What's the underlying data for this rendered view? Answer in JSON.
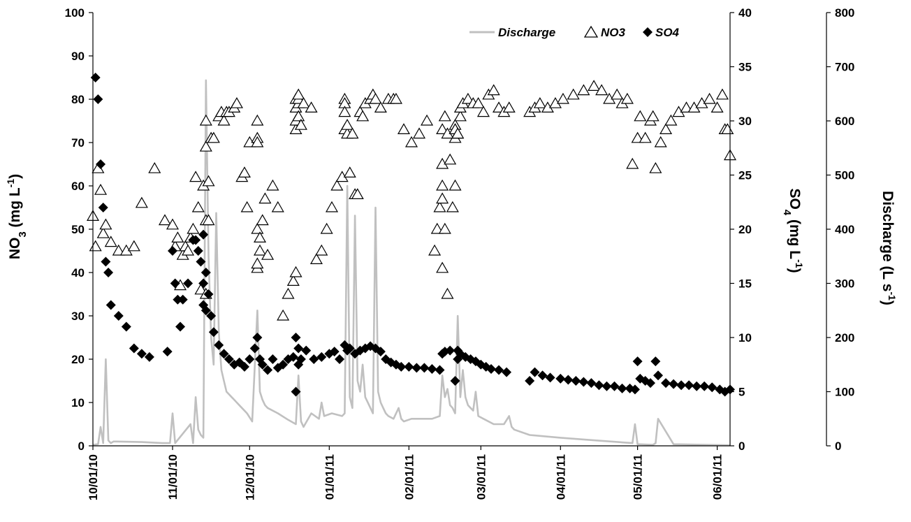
{
  "chart_data": {
    "type": "scatter",
    "title": "",
    "xlabel": "",
    "x_ticks": [
      "10/01/10",
      "11/01/10",
      "12/01/10",
      "01/01/11",
      "02/01/11",
      "03/01/11",
      "04/01/11",
      "05/01/11",
      "06/01/11"
    ],
    "xlim": [
      "2010-10-01",
      "2011-06-06"
    ],
    "y_left": {
      "label_main": "NO",
      "label_sub": "3",
      "label_unit": " (mg L",
      "label_sup": "-1",
      "label_end": ")",
      "ylim": [
        0,
        100
      ],
      "ticks": [
        "0",
        "10",
        "20",
        "30",
        "40",
        "50",
        "60",
        "70",
        "80",
        "90",
        "100"
      ]
    },
    "y_right1": {
      "label_main": "SO",
      "label_sub": "4",
      "label_unit": " (mg L",
      "label_sup": "-1",
      "label_end": ")",
      "ylim": [
        0,
        40
      ],
      "ticks": [
        "0",
        "5",
        "10",
        "15",
        "20",
        "25",
        "30",
        "35",
        "40"
      ]
    },
    "y_right2": {
      "label_main": "Discharge (L s",
      "label_sup": "-1",
      "label_end": ")",
      "ylim": [
        0,
        800
      ],
      "ticks": [
        "0",
        "100",
        "200",
        "300",
        "400",
        "500",
        "600",
        "700",
        "800"
      ]
    },
    "legend": {
      "position": "top-right",
      "entries": [
        "Discharge",
        "NO3",
        "SO4"
      ]
    },
    "colors": {
      "discharge": "#c0c0c0",
      "no3_edge": "#000000",
      "no3_fill": "#ffffff",
      "so4": "#000000"
    },
    "series": [
      {
        "name": "Discharge",
        "kind": "line",
        "axis": "right2",
        "x": [
          "2010-10-01",
          "2010-10-03",
          "2010-10-04",
          "2010-10-05",
          "2010-10-06",
          "2010-10-07",
          "2010-10-08",
          "2010-10-09",
          "2010-10-10",
          "2010-10-20",
          "2010-10-28",
          "2010-10-31",
          "2010-11-01",
          "2010-11-02",
          "2010-11-08",
          "2010-11-09",
          "2010-11-10",
          "2010-11-11",
          "2010-11-12",
          "2010-11-13",
          "2010-11-14",
          "2010-11-15",
          "2010-11-16",
          "2010-11-17",
          "2010-11-18",
          "2010-11-19",
          "2010-11-20",
          "2010-11-21",
          "2010-11-22",
          "2010-11-23",
          "2010-11-24",
          "2010-11-25",
          "2010-11-26",
          "2010-11-28",
          "2010-11-30",
          "2010-12-02",
          "2010-12-04",
          "2010-12-05",
          "2010-12-06",
          "2010-12-07",
          "2010-12-08",
          "2010-12-12",
          "2010-12-16",
          "2010-12-19",
          "2010-12-20",
          "2010-12-21",
          "2010-12-22",
          "2010-12-25",
          "2010-12-28",
          "2010-12-29",
          "2010-12-30",
          "2011-01-02",
          "2011-01-06",
          "2011-01-07",
          "2011-01-08",
          "2011-01-09",
          "2011-01-10",
          "2011-01-11",
          "2011-01-12",
          "2011-01-13",
          "2011-01-14",
          "2011-01-15",
          "2011-01-16",
          "2011-01-17",
          "2011-01-18",
          "2011-01-19",
          "2011-01-20",
          "2011-01-21",
          "2011-01-22",
          "2011-01-23",
          "2011-01-24",
          "2011-01-26",
          "2011-01-28",
          "2011-01-29",
          "2011-01-30",
          "2011-02-02",
          "2011-02-06",
          "2011-02-10",
          "2011-02-13",
          "2011-02-14",
          "2011-02-15",
          "2011-02-16",
          "2011-02-17",
          "2011-02-18",
          "2011-02-19",
          "2011-02-20",
          "2011-02-21",
          "2011-02-22",
          "2011-02-23",
          "2011-02-24",
          "2011-02-25",
          "2011-02-26",
          "2011-02-27",
          "2011-02-28",
          "2011-03-02",
          "2011-03-06",
          "2011-03-10",
          "2011-03-12",
          "2011-03-13",
          "2011-03-14",
          "2011-03-20",
          "2011-04-01",
          "2011-04-15",
          "2011-04-29",
          "2011-04-30",
          "2011-05-01",
          "2011-05-07",
          "2011-05-08",
          "2011-05-09",
          "2011-05-15",
          "2011-06-06"
        ],
        "y": [
          2,
          3,
          35,
          5,
          160,
          10,
          5,
          8,
          8,
          7,
          5,
          5,
          60,
          5,
          40,
          5,
          90,
          30,
          20,
          15,
          675,
          350,
          200,
          150,
          430,
          210,
          140,
          120,
          100,
          95,
          90,
          85,
          80,
          70,
          60,
          45,
          250,
          100,
          85,
          75,
          70,
          60,
          48,
          40,
          130,
          45,
          35,
          60,
          50,
          80,
          55,
          60,
          55,
          60,
          480,
          90,
          70,
          425,
          120,
          100,
          150,
          90,
          80,
          70,
          60,
          440,
          100,
          80,
          70,
          60,
          55,
          50,
          70,
          50,
          45,
          50,
          50,
          50,
          55,
          130,
          90,
          105,
          75,
          70,
          60,
          240,
          90,
          140,
          90,
          75,
          70,
          65,
          100,
          55,
          50,
          40,
          40,
          55,
          35,
          30,
          20,
          15,
          10,
          5,
          40,
          3,
          2,
          5,
          50,
          3,
          1
        ]
      },
      {
        "name": "NO3",
        "kind": "triangle",
        "axis": "left",
        "x": [
          "2010-10-01",
          "2010-10-02",
          "2010-10-03",
          "2010-10-04",
          "2010-10-05",
          "2010-10-06",
          "2010-10-08",
          "2010-10-11",
          "2010-10-14",
          "2010-10-17",
          "2010-10-20",
          "2010-10-25",
          "2010-10-29",
          "2010-11-01",
          "2010-11-02",
          "2010-11-03",
          "2010-11-04",
          "2010-11-05",
          "2010-11-06",
          "2010-11-07",
          "2010-11-08",
          "2010-11-09",
          "2010-11-10",
          "2010-11-11",
          "2010-11-12",
          "2010-11-13",
          "2010-11-14",
          "2010-11-14",
          "2010-11-14",
          "2010-11-14",
          "2010-11-15",
          "2010-11-15",
          "2010-11-16",
          "2010-11-17",
          "2010-11-19",
          "2010-11-20",
          "2010-11-21",
          "2010-11-22",
          "2010-11-23",
          "2010-11-25",
          "2010-11-26",
          "2010-11-28",
          "2010-11-29",
          "2010-11-30",
          "2010-12-01",
          "2010-12-04",
          "2010-12-04",
          "2010-12-04",
          "2010-12-04",
          "2010-12-04",
          "2010-12-04",
          "2010-12-05",
          "2010-12-05",
          "2010-12-06",
          "2010-12-07",
          "2010-12-08",
          "2010-12-10",
          "2010-12-12",
          "2010-12-14",
          "2010-12-16",
          "2010-12-18",
          "2010-12-19",
          "2010-12-19",
          "2010-12-19",
          "2010-12-19",
          "2010-12-19",
          "2010-12-20",
          "2010-12-20",
          "2010-12-20",
          "2010-12-20",
          "2010-12-21",
          "2010-12-22",
          "2010-12-25",
          "2010-12-27",
          "2010-12-29",
          "2010-12-31",
          "2011-01-02",
          "2011-01-04",
          "2011-01-06",
          "2011-01-07",
          "2011-01-07",
          "2011-01-07",
          "2011-01-07",
          "2011-01-08",
          "2011-01-08",
          "2011-01-09",
          "2011-01-10",
          "2011-01-11",
          "2011-01-12",
          "2011-01-13",
          "2011-01-14",
          "2011-01-15",
          "2011-01-17",
          "2011-01-18",
          "2011-01-19",
          "2011-01-21",
          "2011-01-24",
          "2011-01-26",
          "2011-01-27",
          "2011-01-30",
          "2011-02-02",
          "2011-02-05",
          "2011-02-08",
          "2011-02-11",
          "2011-02-12",
          "2011-02-13",
          "2011-02-14",
          "2011-02-14",
          "2011-02-14",
          "2011-02-14",
          "2011-02-14",
          "2011-02-15",
          "2011-02-15",
          "2011-02-16",
          "2011-02-16",
          "2011-02-17",
          "2011-02-18",
          "2011-02-19",
          "2011-02-19",
          "2011-02-19",
          "2011-02-19",
          "2011-02-19",
          "2011-02-20",
          "2011-02-20",
          "2011-02-21",
          "2011-02-21",
          "2011-02-22",
          "2011-02-24",
          "2011-02-26",
          "2011-02-28",
          "2011-03-02",
          "2011-03-04",
          "2011-03-06",
          "2011-03-08",
          "2011-03-10",
          "2011-03-12",
          "2011-03-20",
          "2011-03-22",
          "2011-03-24",
          "2011-03-27",
          "2011-03-30",
          "2011-04-02",
          "2011-04-06",
          "2011-04-10",
          "2011-04-14",
          "2011-04-17",
          "2011-04-20",
          "2011-04-23",
          "2011-04-25",
          "2011-04-27",
          "2011-04-29",
          "2011-05-01",
          "2011-05-02",
          "2011-05-04",
          "2011-05-06",
          "2011-05-07",
          "2011-05-08",
          "2011-05-10",
          "2011-05-12",
          "2011-05-14",
          "2011-05-17",
          "2011-05-20",
          "2011-05-23",
          "2011-05-26",
          "2011-05-29",
          "2011-06-01",
          "2011-06-03",
          "2011-06-04",
          "2011-06-05",
          "2011-06-06"
        ],
        "y": [
          53,
          46,
          64,
          59,
          49,
          51,
          47,
          45,
          45,
          46,
          56,
          64,
          52,
          51,
          46,
          48,
          37,
          44,
          46,
          45,
          48,
          50,
          62,
          55,
          36,
          60,
          69,
          75,
          35,
          52,
          52,
          61,
          71,
          71,
          76,
          77,
          75,
          77,
          77,
          78,
          79,
          62,
          63,
          55,
          70,
          71,
          70,
          75,
          41,
          42,
          50,
          48,
          45,
          52,
          57,
          44,
          60,
          55,
          30,
          35,
          38,
          40,
          73,
          75,
          78,
          80,
          79,
          80,
          81,
          76,
          74,
          79,
          78,
          43,
          45,
          50,
          55,
          60,
          62,
          80,
          79,
          77,
          73,
          72,
          74,
          63,
          72,
          58,
          58,
          77,
          76,
          79,
          80,
          81,
          80,
          78,
          80,
          80,
          80,
          73,
          70,
          72,
          75,
          45,
          50,
          55,
          60,
          65,
          57,
          41,
          73,
          76,
          50,
          35,
          72,
          66,
          55,
          60,
          71,
          74,
          73,
          73,
          72,
          72,
          76,
          78,
          79,
          80,
          79,
          79,
          77,
          81,
          82,
          78,
          77,
          78,
          77,
          78,
          79,
          78,
          79,
          80,
          81,
          82,
          83,
          82,
          80,
          81,
          79,
          80,
          65,
          71,
          76,
          71,
          75,
          76,
          64,
          70,
          73,
          75,
          77,
          78,
          78,
          79,
          80,
          78,
          81,
          73,
          73,
          67
        ]
      },
      {
        "name": "SO4",
        "kind": "diamond",
        "axis": "right1",
        "x": [
          "2010-10-02",
          "2010-10-03",
          "2010-10-04",
          "2010-10-05",
          "2010-10-06",
          "2010-10-07",
          "2010-10-08",
          "2010-10-11",
          "2010-10-14",
          "2010-10-17",
          "2010-10-20",
          "2010-10-23",
          "2010-10-30",
          "2010-11-01",
          "2010-11-02",
          "2010-11-03",
          "2010-11-04",
          "2010-11-05",
          "2010-11-07",
          "2010-11-09",
          "2010-11-10",
          "2010-11-11",
          "2010-11-12",
          "2010-11-13",
          "2010-11-13",
          "2010-11-13",
          "2010-11-14",
          "2010-11-14",
          "2010-11-15",
          "2010-11-16",
          "2010-11-17",
          "2010-11-19",
          "2010-11-21",
          "2010-11-23",
          "2010-11-25",
          "2010-11-27",
          "2010-11-29",
          "2010-12-01",
          "2010-12-03",
          "2010-12-04",
          "2010-12-05",
          "2010-12-06",
          "2010-12-08",
          "2010-12-10",
          "2010-12-12",
          "2010-12-14",
          "2010-12-16",
          "2010-12-18",
          "2010-12-19",
          "2010-12-19",
          "2010-12-20",
          "2010-12-20",
          "2010-12-21",
          "2010-12-23",
          "2010-12-26",
          "2010-12-29",
          "2011-01-01",
          "2011-01-03",
          "2011-01-05",
          "2011-01-07",
          "2011-01-08",
          "2011-01-09",
          "2011-01-11",
          "2011-01-13",
          "2011-01-15",
          "2011-01-17",
          "2011-01-19",
          "2011-01-21",
          "2011-01-23",
          "2011-01-25",
          "2011-01-27",
          "2011-01-29",
          "2011-02-01",
          "2011-02-04",
          "2011-02-07",
          "2011-02-10",
          "2011-02-13",
          "2011-02-14",
          "2011-02-15",
          "2011-02-17",
          "2011-02-19",
          "2011-02-20",
          "2011-02-20",
          "2011-02-21",
          "2011-02-23",
          "2011-02-25",
          "2011-02-27",
          "2011-03-01",
          "2011-03-03",
          "2011-03-05",
          "2011-03-08",
          "2011-03-11",
          "2011-03-20",
          "2011-03-22",
          "2011-03-25",
          "2011-03-28",
          "2011-04-01",
          "2011-04-04",
          "2011-04-07",
          "2011-04-10",
          "2011-04-13",
          "2011-04-16",
          "2011-04-19",
          "2011-04-22",
          "2011-04-25",
          "2011-04-28",
          "2011-04-30",
          "2011-05-01",
          "2011-05-02",
          "2011-05-04",
          "2011-05-06",
          "2011-05-08",
          "2011-05-09",
          "2011-05-12",
          "2011-05-15",
          "2011-05-18",
          "2011-05-21",
          "2011-05-24",
          "2011-05-27",
          "2011-05-30",
          "2011-06-02",
          "2011-06-04",
          "2011-06-06"
        ],
        "y": [
          34,
          32,
          26,
          22,
          17,
          16,
          13,
          12,
          11,
          9,
          8.5,
          8.2,
          8.7,
          18,
          15,
          13.5,
          11,
          13.5,
          15,
          19,
          19,
          18,
          17,
          13,
          15,
          19.5,
          12.5,
          16,
          14,
          12,
          10.5,
          9.3,
          8.5,
          8,
          7.5,
          7.7,
          7.3,
          8,
          9,
          10,
          8,
          7.5,
          7,
          8,
          7.2,
          7.5,
          8,
          8.2,
          5,
          10,
          9,
          7.5,
          8,
          8.8,
          8,
          8.2,
          8.5,
          8.7,
          8,
          9.3,
          8.8,
          9,
          8.5,
          8.8,
          9,
          9.2,
          9,
          8.7,
          8,
          7.7,
          7.5,
          7.3,
          7.3,
          7.2,
          7.2,
          7.1,
          7,
          8.5,
          8.7,
          8.8,
          6,
          8,
          8.8,
          8.5,
          8.2,
          8,
          7.8,
          7.5,
          7.3,
          7.1,
          7,
          6.8,
          6,
          6.8,
          6.5,
          6.3,
          6.2,
          6.1,
          6,
          5.9,
          5.8,
          5.6,
          5.5,
          5.5,
          5.3,
          5.3,
          5.2,
          7.8,
          6.2,
          6,
          5.8,
          7.8,
          6.5,
          5.8,
          5.7,
          5.6,
          5.6,
          5.5,
          5.5,
          5.4,
          5.2,
          5,
          5.2
        ]
      }
    ]
  }
}
